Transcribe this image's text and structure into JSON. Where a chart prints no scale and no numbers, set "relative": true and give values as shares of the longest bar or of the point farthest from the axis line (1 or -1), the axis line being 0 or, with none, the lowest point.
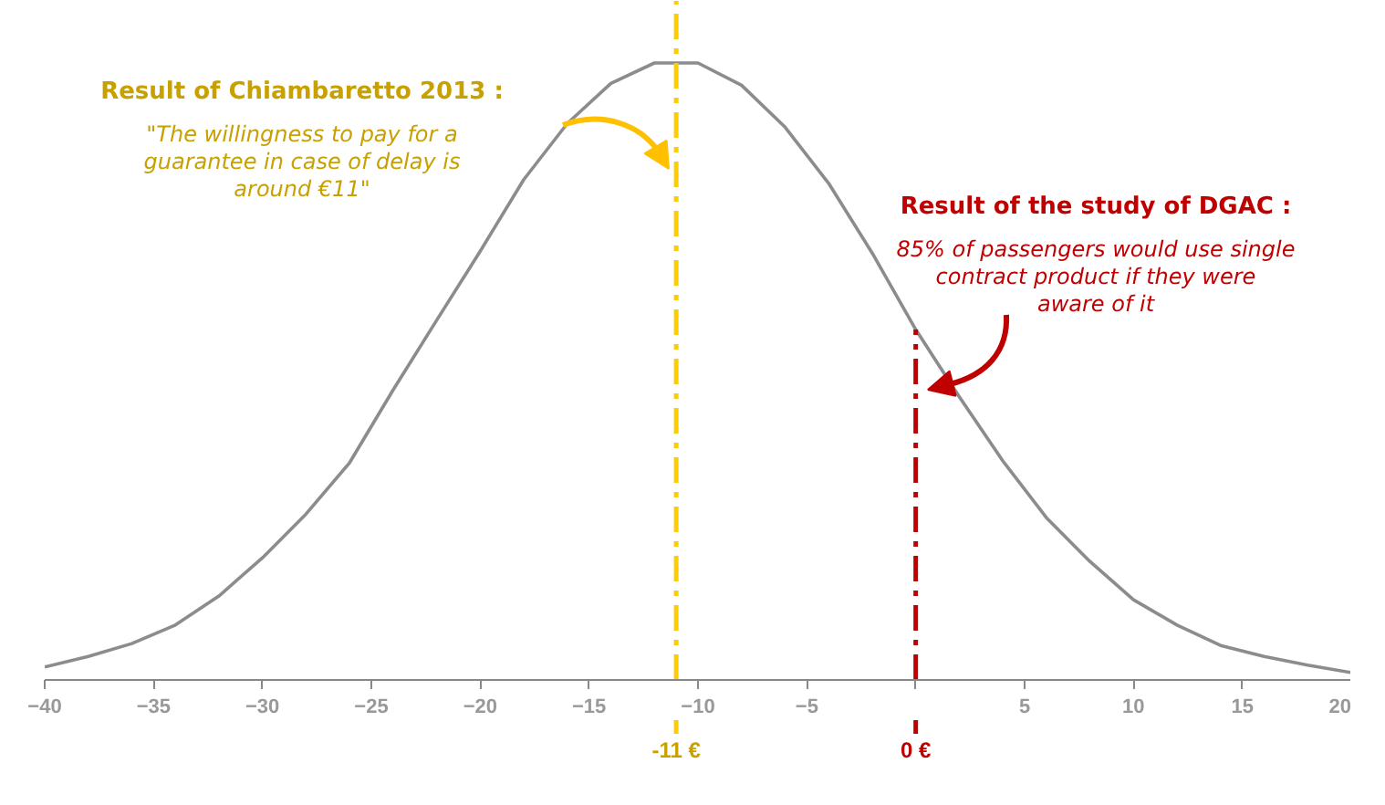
{
  "chart_data": {
    "type": "line",
    "relative": true,
    "x": [
      -40,
      -38,
      -36,
      -34,
      -32,
      -30,
      -28,
      -26,
      -24,
      -22,
      -20,
      -18,
      -16,
      -14,
      -12,
      -10,
      -8,
      -6,
      -4,
      -2,
      0,
      2,
      4,
      6,
      8,
      10,
      12,
      14,
      16,
      18,
      20
    ],
    "series": [
      {
        "color": "#8c8c8c",
        "values": [
          0.021,
          0.038,
          0.059,
          0.089,
          0.136,
          0.198,
          0.269,
          0.352,
          0.47,
          0.583,
          0.695,
          0.811,
          0.902,
          0.967,
          1.0,
          1.0,
          0.964,
          0.896,
          0.805,
          0.692,
          0.568,
          0.459,
          0.355,
          0.263,
          0.192,
          0.13,
          0.089,
          0.056,
          0.038,
          0.024,
          0.012
        ]
      }
    ],
    "xlim": [
      -40,
      20
    ],
    "xticks": [
      -40,
      -35,
      -30,
      -25,
      -20,
      -15,
      -10,
      -5,
      {
        "value": 0,
        "label": null
      },
      5,
      10,
      15,
      20
    ],
    "grid": false,
    "marker": "none",
    "line_style": "solid",
    "ref_lines": [
      {
        "axis": "x",
        "value": -11,
        "label": "-11 €",
        "color": "#ffcc00",
        "line_style": "dashdot"
      },
      {
        "axis": "x",
        "value": 0,
        "label": "0 €",
        "color": "#c00000",
        "line_style": "dashdot"
      }
    ],
    "annotations": [
      "Result of Chiambaretto 2013 :",
      "\"The willingness to pay for a guarantee in case of delay is around €11\"",
      "Result of the study of DGAC :",
      "85% of passengers would use single contract product if they were aware of it"
    ]
  }
}
